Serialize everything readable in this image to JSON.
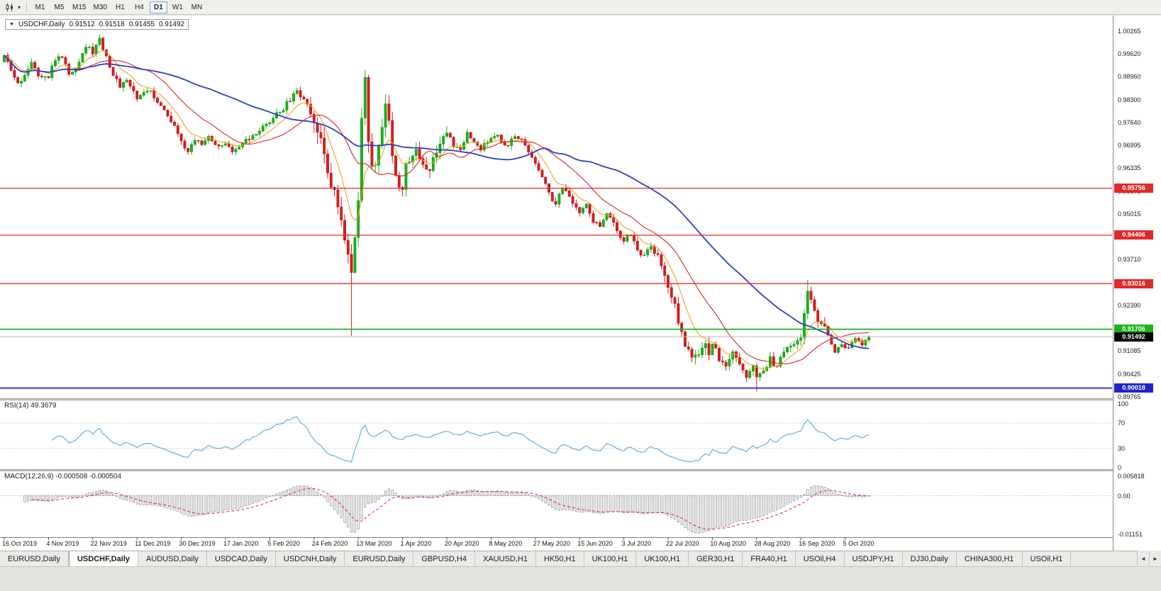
{
  "toolbar": {
    "dropdown_glyph": "▾",
    "timeframes": [
      "M1",
      "M5",
      "M15",
      "M30",
      "H1",
      "H4",
      "D1",
      "W1",
      "MN"
    ],
    "active_timeframe": "D1"
  },
  "chart": {
    "collapse_glyph": "▼",
    "title": "USDCHF,Daily",
    "open": "0.91512",
    "high": "0.91518",
    "low": "0.91455",
    "close": "0.91492",
    "y_axis_labels": [
      "1.00265",
      "0.99620",
      "0.98960",
      "0.98300",
      "0.97640",
      "0.96995",
      "0.96335",
      "0.95675",
      "0.95015",
      "0.94355",
      "0.93710",
      "0.93050",
      "0.92390",
      "0.91730",
      "0.91085",
      "0.90425",
      "0.89765"
    ],
    "x_axis_labels": [
      "16 Oct 2019",
      "4 Nov 2019",
      "22 Nov 2019",
      "11 Dec 2019",
      "30 Dec 2019",
      "17 Jan 2020",
      "5 Feb 2020",
      "24 Feb 2020",
      "13 Mar 2020",
      "1 Apr 2020",
      "20 Apr 2020",
      "8 May 2020",
      "27 May 2020",
      "15 Jun 2020",
      "3 Jul 2020",
      "22 Jul 2020",
      "10 Aug 2020",
      "28 Aug 2020",
      "16 Sep 2020",
      "5 Oct 2020"
    ],
    "horizontal_lines": [
      {
        "price": 0.95756,
        "label": "0.95756",
        "color": "#e02a2a"
      },
      {
        "price": 0.94406,
        "label": "0.94406",
        "color": "#e02a2a"
      },
      {
        "price": 0.93016,
        "label": "0.93016",
        "color": "#e02a2a"
      },
      {
        "price": 0.91706,
        "label": "0.91706",
        "color": "#1cb21c"
      },
      {
        "price": 0.90018,
        "label": "0.90018",
        "color": "#2222cc"
      }
    ],
    "current_price": {
      "value": 0.91492,
      "label": "0.91492",
      "tag_background": "#000000",
      "line_color": "#b8b8b8"
    }
  },
  "rsi_panel": {
    "label": "RSI(14) 49.3679",
    "name": "RSI(14)",
    "value": "49.3679",
    "axis_labels": [
      {
        "text": "100",
        "value": 100
      },
      {
        "text": "70",
        "value": 70
      },
      {
        "text": "30",
        "value": 30
      },
      {
        "text": "0",
        "value": 0
      }
    ],
    "levels": [
      70,
      30
    ],
    "line_color": "#5aa7d8"
  },
  "macd_panel": {
    "label": "MACD(12,26,9) -0.000508 -0.000504",
    "name": "MACD(12,26,9)",
    "values": "-0.000508 -0.000504",
    "axis_labels": [
      {
        "text": "0.005818",
        "value": 0.005818
      },
      {
        "text": "0.00",
        "value": 0
      },
      {
        "text": "-0.01151",
        "value": -0.01151
      }
    ],
    "histogram_color": "#9a9a9a",
    "signal_color": "#dd2222"
  },
  "tab_bar": {
    "tabs": [
      "EURUSD,Daily",
      "USDCHF,Daily",
      "AUDUSD,Daily",
      "USDCAD,Daily",
      "USDCNH,Daily",
      "EURUSD,Daily",
      "GBPUSD,H4",
      "XAUUSD,H1",
      "HK50,H1",
      "UK100,H1",
      "UK100,H1",
      "GER30,H1",
      "FRA40,H1",
      "USOil,H4",
      "USDJPY,H1",
      "DJ30,Daily",
      "CHINA300,H1",
      "USOil,H1"
    ],
    "active_index": 1,
    "scroll_left_icon": "◄",
    "scroll_right_icon": "►"
  },
  "chart_data": {
    "type": "candlestick",
    "symbol": "USDCHF",
    "timeframe": "Daily",
    "candle_count": 255,
    "up_color": "#18b418",
    "down_color": "#e01818",
    "price_range_visible": [
      0.89765,
      1.00265
    ],
    "close_anchors": [
      [
        0,
        0.995
      ],
      [
        2,
        0.9915
      ],
      [
        4,
        0.987
      ],
      [
        6,
        0.9905
      ],
      [
        8,
        0.994
      ],
      [
        10,
        0.9905
      ],
      [
        13,
        0.99
      ],
      [
        15,
        0.9945
      ],
      [
        17,
        0.9955
      ],
      [
        19,
        0.99
      ],
      [
        21,
        0.9925
      ],
      [
        24,
        0.9985
      ],
      [
        26,
        0.9965
      ],
      [
        28,
        1.0005
      ],
      [
        30,
        0.9955
      ],
      [
        32,
        0.99
      ],
      [
        34,
        0.987
      ],
      [
        36,
        0.989
      ],
      [
        39,
        0.983
      ],
      [
        41,
        0.9855
      ],
      [
        43,
        0.986
      ],
      [
        45,
        0.9825
      ],
      [
        47,
        0.98
      ],
      [
        49,
        0.977
      ],
      [
        52,
        0.9705
      ],
      [
        54,
        0.968
      ],
      [
        56,
        0.9715
      ],
      [
        58,
        0.97
      ],
      [
        60,
        0.9725
      ],
      [
        62,
        0.9705
      ],
      [
        65,
        0.97
      ],
      [
        67,
        0.9675
      ],
      [
        69,
        0.969
      ],
      [
        71,
        0.9715
      ],
      [
        73,
        0.972
      ],
      [
        75,
        0.974
      ],
      [
        78,
        0.976
      ],
      [
        80,
        0.979
      ],
      [
        82,
        0.9805
      ],
      [
        84,
        0.983
      ],
      [
        86,
        0.985
      ],
      [
        88,
        0.9835
      ],
      [
        90,
        0.98
      ],
      [
        91,
        0.978
      ],
      [
        93,
        0.97
      ],
      [
        95,
        0.964
      ],
      [
        97,
        0.956
      ],
      [
        99,
        0.948
      ],
      [
        101,
        0.939
      ],
      [
        102,
        0.935
      ],
      [
        103,
        0.942
      ],
      [
        104,
        0.956
      ],
      [
        105,
        0.976
      ],
      [
        106,
        0.989
      ],
      [
        107,
        0.97
      ],
      [
        108,
        0.962
      ],
      [
        109,
        0.965
      ],
      [
        110,
        0.972
      ],
      [
        111,
        0.976
      ],
      [
        112,
        0.98
      ],
      [
        113,
        0.976
      ],
      [
        114,
        0.968
      ],
      [
        115,
        0.962
      ],
      [
        116,
        0.956
      ],
      [
        117,
        0.958
      ],
      [
        118,
        0.964
      ],
      [
        119,
        0.966
      ],
      [
        121,
        0.9685
      ],
      [
        123,
        0.965
      ],
      [
        125,
        0.963
      ],
      [
        127,
        0.969
      ],
      [
        129,
        0.972
      ],
      [
        130,
        0.973
      ],
      [
        132,
        0.97
      ],
      [
        134,
        0.968
      ],
      [
        136,
        0.9735
      ],
      [
        138,
        0.971
      ],
      [
        140,
        0.969
      ],
      [
        143,
        0.9715
      ],
      [
        145,
        0.973
      ],
      [
        147,
        0.97
      ],
      [
        149,
        0.971
      ],
      [
        151,
        0.9725
      ],
      [
        153,
        0.97
      ],
      [
        156,
        0.965
      ],
      [
        158,
        0.961
      ],
      [
        160,
        0.956
      ],
      [
        162,
        0.953
      ],
      [
        164,
        0.958
      ],
      [
        166,
        0.9545
      ],
      [
        169,
        0.95
      ],
      [
        171,
        0.9535
      ],
      [
        173,
        0.948
      ],
      [
        175,
        0.9465
      ],
      [
        177,
        0.951
      ],
      [
        179,
        0.947
      ],
      [
        182,
        0.942
      ],
      [
        184,
        0.9445
      ],
      [
        186,
        0.94
      ],
      [
        188,
        0.938
      ],
      [
        190,
        0.9405
      ],
      [
        192,
        0.938
      ],
      [
        195,
        0.93
      ],
      [
        197,
        0.924
      ],
      [
        199,
        0.916
      ],
      [
        201,
        0.9105
      ],
      [
        203,
        0.9085
      ],
      [
        205,
        0.913
      ],
      [
        207,
        0.911
      ],
      [
        208,
        0.9135
      ],
      [
        210,
        0.9085
      ],
      [
        212,
        0.9055
      ],
      [
        214,
        0.9105
      ],
      [
        216,
        0.9065
      ],
      [
        218,
        0.9035
      ],
      [
        220,
        0.906
      ],
      [
        221,
        0.9025
      ],
      [
        223,
        0.9055
      ],
      [
        225,
        0.9085
      ],
      [
        227,
        0.9065
      ],
      [
        229,
        0.9105
      ],
      [
        231,
        0.9125
      ],
      [
        233,
        0.914
      ],
      [
        234,
        0.9155
      ],
      [
        235,
        0.922
      ],
      [
        236,
        0.9285
      ],
      [
        237,
        0.926
      ],
      [
        238,
        0.9225
      ],
      [
        240,
        0.9185
      ],
      [
        242,
        0.9155
      ],
      [
        244,
        0.9105
      ],
      [
        246,
        0.9125
      ],
      [
        248,
        0.9115
      ],
      [
        250,
        0.914
      ],
      [
        252,
        0.913
      ],
      [
        254,
        0.91492
      ]
    ],
    "special_wicks": {
      "28": {
        "high": 1.0018
      },
      "102": {
        "low": 0.9152
      },
      "106": {
        "high": 0.9905
      },
      "221": {
        "low": 0.8992
      },
      "236": {
        "high": 0.9312
      }
    },
    "volatility_zones": [
      {
        "from": 0,
        "to": 89,
        "v": 0.0018
      },
      {
        "from": 90,
        "to": 116,
        "v": 0.005
      },
      {
        "from": 117,
        "to": 130,
        "v": 0.0032
      },
      {
        "from": 131,
        "to": 193,
        "v": 0.0017
      },
      {
        "from": 194,
        "to": 207,
        "v": 0.0032
      },
      {
        "from": 208,
        "to": 233,
        "v": 0.0022
      },
      {
        "from": 234,
        "to": 241,
        "v": 0.0028
      },
      {
        "from": 242,
        "to": 254,
        "v": 0.0015
      }
    ],
    "moving_averages": [
      {
        "name": "fast",
        "type": "ema",
        "period": 9,
        "color": "#f0a223"
      },
      {
        "name": "mid",
        "type": "sma",
        "period": 21,
        "color": "#dd2222"
      },
      {
        "name": "slow",
        "type": "sma",
        "period": 55,
        "color": "#2d3fc0"
      }
    ],
    "rsi_period": 14,
    "macd_params": [
      12,
      26,
      9
    ]
  }
}
